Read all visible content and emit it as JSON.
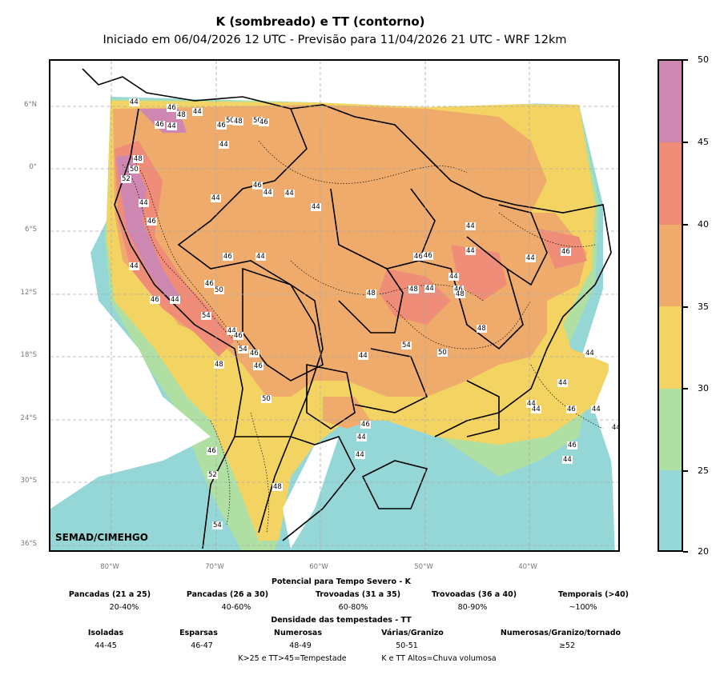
{
  "header": {
    "title": "K (sombreado) e TT (contorno)",
    "subtitle": "Iniciado em 06/04/2026 12 UTC - Previsão para 11/04/2026 21 UTC - WRF 12km"
  },
  "map": {
    "brand": "SEMAD/CIMEHGO",
    "lat_labels": [
      "6°N",
      "0°",
      "6°S",
      "12°S",
      "18°S",
      "24°S",
      "30°S",
      "36°S"
    ],
    "lon_labels": [
      "80°W",
      "70°W",
      "60°W",
      "50°W",
      "40°W"
    ],
    "contour_labels": [
      "44",
      "46",
      "48",
      "44",
      "46",
      "44",
      "46",
      "50",
      "50",
      "48",
      "44",
      "46",
      "48",
      "50",
      "52",
      "44",
      "46",
      "44",
      "46",
      "44",
      "44",
      "44",
      "46",
      "44",
      "44",
      "46",
      "50",
      "44",
      "44",
      "46",
      "44",
      "54",
      "46",
      "54",
      "46",
      "46",
      "48",
      "50",
      "44",
      "46",
      "44",
      "48",
      "54",
      "52",
      "46",
      "44",
      "54",
      "48",
      "46",
      "44",
      "46",
      "44",
      "48",
      "46",
      "48",
      "50",
      "48",
      "46",
      "44",
      "44",
      "44",
      "46",
      "44",
      "44",
      "44",
      "44",
      "46",
      "44",
      "46",
      "44",
      "44"
    ],
    "colors": {
      "k_20_25": "#95d7d6",
      "k_25_30": "#afdfa2",
      "k_30_35": "#f3d463",
      "k_35_40": "#efab6b",
      "k_40_45": "#ef8d78",
      "k_45_50": "#cd87b0"
    }
  },
  "colorbar": {
    "ticks": [
      "50",
      "45",
      "40",
      "35",
      "30",
      "25",
      "20"
    ],
    "colors": [
      "#cd87b0",
      "#ef8d78",
      "#efab6b",
      "#f3d463",
      "#afdfa2",
      "#95d7d6"
    ]
  },
  "legend": {
    "k_title": "Potencial para Tempo Severo - K",
    "k_items": [
      {
        "name": "Pancadas (21 a 25)",
        "value": "20-40%"
      },
      {
        "name": "Pancadas (26 a 30)",
        "value": "40-60%"
      },
      {
        "name": "Trovoadas (31 a 35)",
        "value": "60-80%"
      },
      {
        "name": "Trovoadas (36 a 40)",
        "value": "80-90%"
      },
      {
        "name": "Temporais (>40)",
        "value": "~100%"
      }
    ],
    "tt_title": "Densidade das tempestades - TT",
    "tt_items": [
      {
        "name": "Isoladas",
        "value": "44-45"
      },
      {
        "name": "Esparsas",
        "value": "46-47"
      },
      {
        "name": "Numerosas",
        "value": "48-49"
      },
      {
        "name": "Várias/Granizo",
        "value": "50-51"
      },
      {
        "name": "Numerosas/Granizo/tornado",
        "value": "≥52"
      }
    ],
    "footer_left": "K>25 e TT>45=Tempestade",
    "footer_right": "K e TT Altos=Chuva volumosa"
  }
}
